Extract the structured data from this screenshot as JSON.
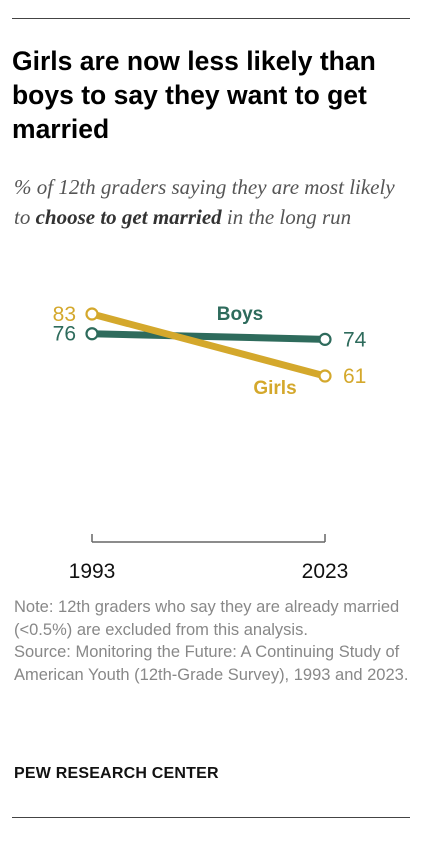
{
  "title": "Girls are now less likely than boys to say they want to get married",
  "subtitle": {
    "before": "% of 12th graders saying they are most likely to ",
    "bold": "choose to get married",
    "after": " in the long run"
  },
  "chart_data": {
    "type": "line",
    "x": [
      "1993",
      "2023"
    ],
    "series": [
      {
        "name": "Boys",
        "values": [
          76,
          74
        ],
        "color": "#2e6b5c"
      },
      {
        "name": "Girls",
        "values": [
          83,
          61
        ],
        "color": "#d4a82c"
      }
    ],
    "xlabel": "",
    "ylabel": "",
    "grid": false,
    "legend": "direct labels on lines"
  },
  "note": "Note: 12th graders who say they are already married (<0.5%) are excluded from this analysis.",
  "source": "Source: Monitoring the Future: A Continuing Study of American Youth (12th-Grade Survey), 1993 and 2023.",
  "credit": "PEW RESEARCH CENTER"
}
